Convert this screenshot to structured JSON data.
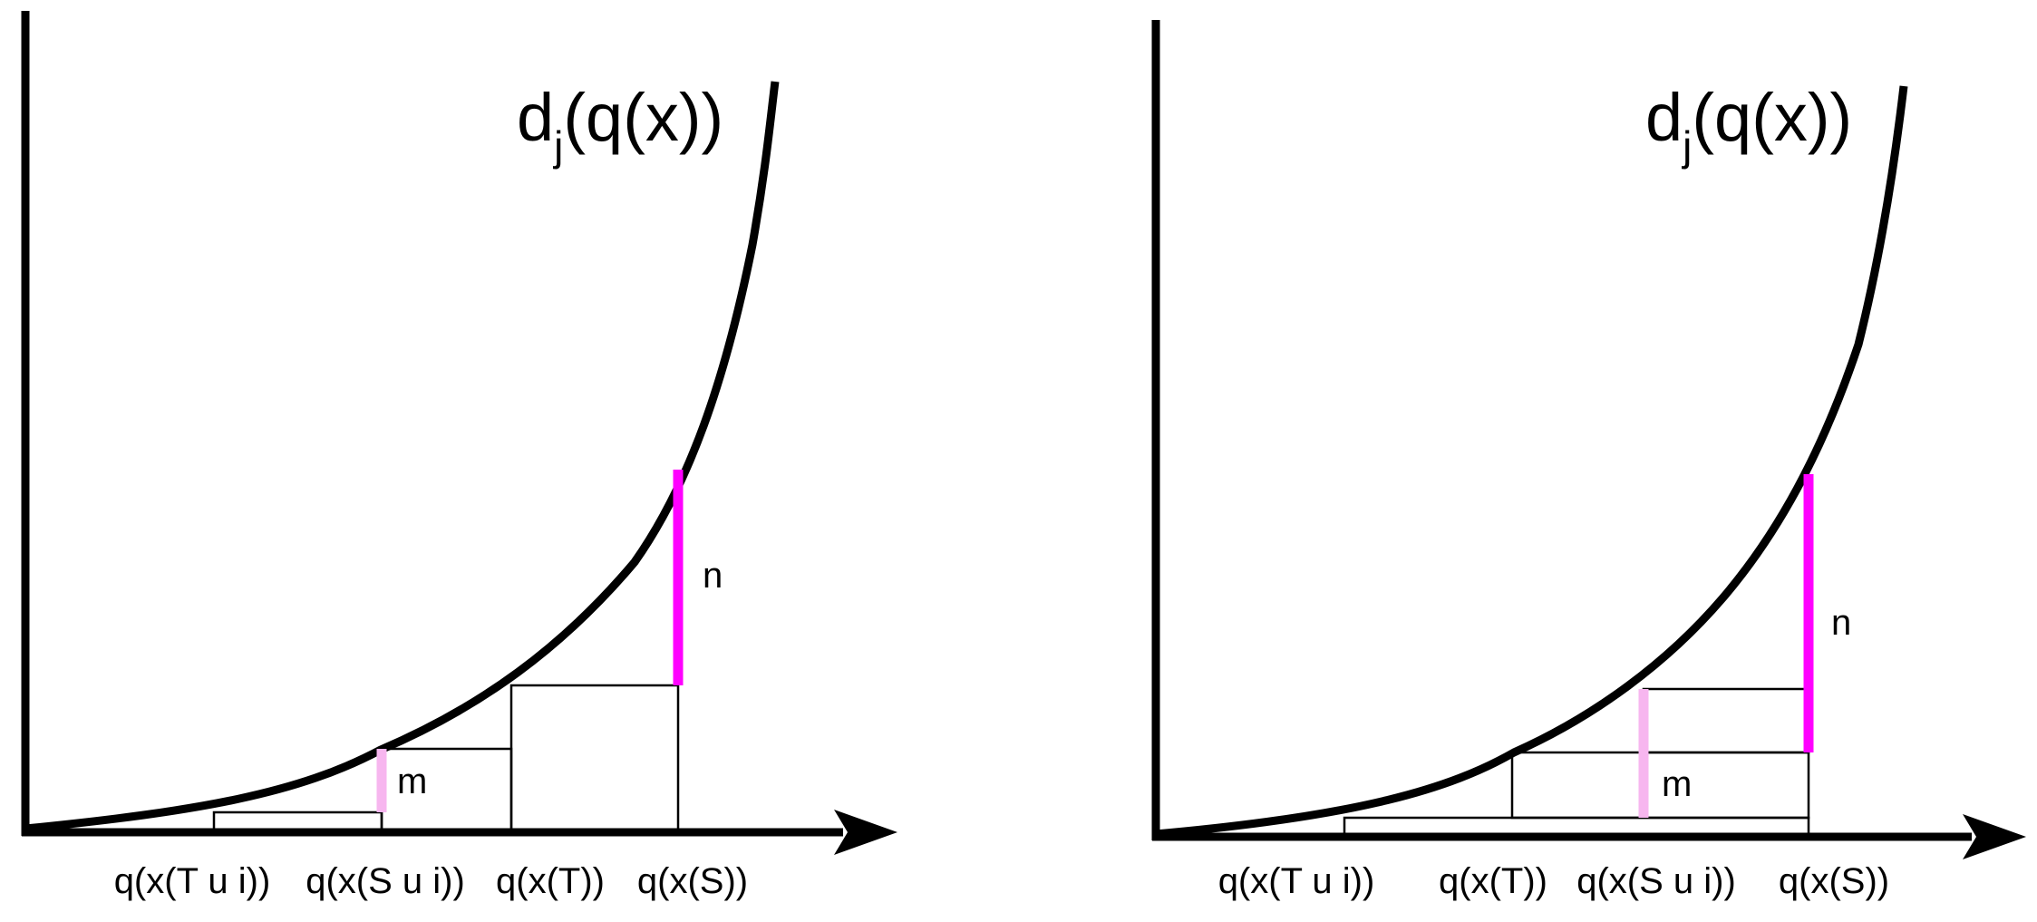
{
  "panels": [
    {
      "id": "left",
      "function_label": {
        "prefix": "d",
        "subscript": "j",
        "suffix": "(q(x))"
      },
      "ticks": [
        "q(x(T u i))",
        "q(x(S u i))",
        "q(x(T))",
        "q(x(S))"
      ],
      "bars": [
        {
          "label": "n",
          "color": "#ff00ff"
        },
        {
          "label": "m",
          "color": "#f7b6ef"
        }
      ]
    },
    {
      "id": "right",
      "function_label": {
        "prefix": "d",
        "subscript": "j",
        "suffix": "(q(x))"
      },
      "ticks": [
        "q(x(T u i))",
        "q(x(T))",
        "q(x(S u i))",
        "q(x(S))"
      ],
      "bars": [
        {
          "label": "n",
          "color": "#ff00ff"
        },
        {
          "label": "m",
          "color": "#f7b6ef"
        }
      ]
    }
  ]
}
